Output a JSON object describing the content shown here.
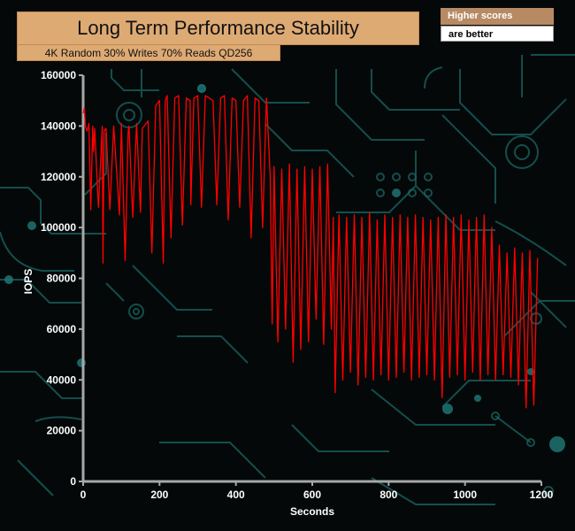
{
  "chart_data": {
    "type": "line",
    "title": "Long Term Performance Stability",
    "subtitle": "4K Random 30% Writes 70% Reads QD256",
    "xlabel": "Seconds",
    "ylabel": "IOPS",
    "xlim": [
      0,
      1200
    ],
    "ylim": [
      0,
      160000
    ],
    "x_ticks": [
      0,
      200,
      400,
      600,
      800,
      1000,
      1200
    ],
    "y_ticks": [
      0,
      20000,
      40000,
      60000,
      80000,
      100000,
      120000,
      140000,
      160000
    ],
    "x_tick_labels": [
      "0",
      "200",
      "400",
      "600",
      "800",
      "1000",
      "1200"
    ],
    "y_tick_labels": [
      "0",
      "20000",
      "40000",
      "60000",
      "80000",
      "100000",
      "120000",
      "140000",
      "160000"
    ],
    "grid": false,
    "series": [
      {
        "color": "#ff0000",
        "x": [
          0,
          3,
          6,
          10,
          12,
          15,
          20,
          25,
          27,
          30,
          40,
          50,
          52,
          55,
          60,
          70,
          80,
          95,
          100,
          110,
          118,
          120,
          130,
          140,
          150,
          155,
          160,
          170,
          180,
          190,
          200,
          210,
          215,
          220,
          230,
          240,
          250,
          260,
          270,
          280,
          282,
          290,
          300,
          310,
          320,
          330,
          340,
          350,
          360,
          370,
          380,
          390,
          400,
          410,
          420,
          430,
          440,
          450,
          460,
          470,
          480,
          490,
          495,
          500,
          510,
          520,
          530,
          540,
          550,
          560,
          570,
          580,
          590,
          600,
          610,
          620,
          630,
          640,
          650,
          655,
          660,
          670,
          680,
          690,
          700,
          710,
          720,
          730,
          740,
          750,
          760,
          770,
          780,
          790,
          800,
          810,
          820,
          830,
          840,
          850,
          860,
          870,
          880,
          890,
          900,
          910,
          920,
          930,
          940,
          950,
          960,
          970,
          980,
          990,
          1000,
          1010,
          1020,
          1030,
          1040,
          1050,
          1060,
          1070,
          1080,
          1090,
          1100,
          1110,
          1120,
          1130,
          1140,
          1150,
          1160,
          1170,
          1180,
          1190
        ],
        "values": [
          145000,
          147000,
          140000,
          138000,
          139000,
          141000,
          107000,
          140000,
          130000,
          139000,
          108000,
          140000,
          86000,
          138000,
          139000,
          107000,
          140000,
          105000,
          141000,
          87000,
          138000,
          140000,
          104000,
          141000,
          106000,
          139000,
          140000,
          142000,
          90000,
          148000,
          150000,
          86000,
          150000,
          152000,
          96000,
          151000,
          152000,
          101000,
          151000,
          150000,
          109000,
          151000,
          152000,
          108000,
          152000,
          151000,
          150000,
          109000,
          151000,
          152000,
          103000,
          151000,
          150000,
          108000,
          150000,
          152000,
          96000,
          151000,
          150000,
          100000,
          151000,
          120000,
          62000,
          124000,
          55000,
          123000,
          60000,
          125000,
          47000,
          123000,
          52000,
          124000,
          55000,
          123000,
          64000,
          124000,
          54000,
          125000,
          60000,
          104000,
          35000,
          105000,
          40000,
          104000,
          43000,
          105000,
          38000,
          104000,
          41000,
          106000,
          40000,
          103000,
          42000,
          105000,
          40000,
          104000,
          41000,
          105000,
          43000,
          104000,
          40000,
          105000,
          41000,
          104000,
          42000,
          103000,
          40000,
          104000,
          33000,
          105000,
          41000,
          104000,
          42000,
          105000,
          40000,
          103000,
          43000,
          104000,
          40000,
          105000,
          42000,
          100000,
          40000,
          93000,
          42000,
          90000,
          41000,
          92000,
          38000,
          90000,
          29000,
          91000,
          30000,
          88000
        ]
      }
    ]
  },
  "notes": {
    "higher_scores": "Higher scores",
    "are_better": "are better"
  },
  "colors": {
    "line": "#ff0000",
    "axis": "#a8a8a8",
    "title_bg": "#deaa74",
    "note_bg": "#b78a64",
    "circuit": "#1a6b6b"
  }
}
